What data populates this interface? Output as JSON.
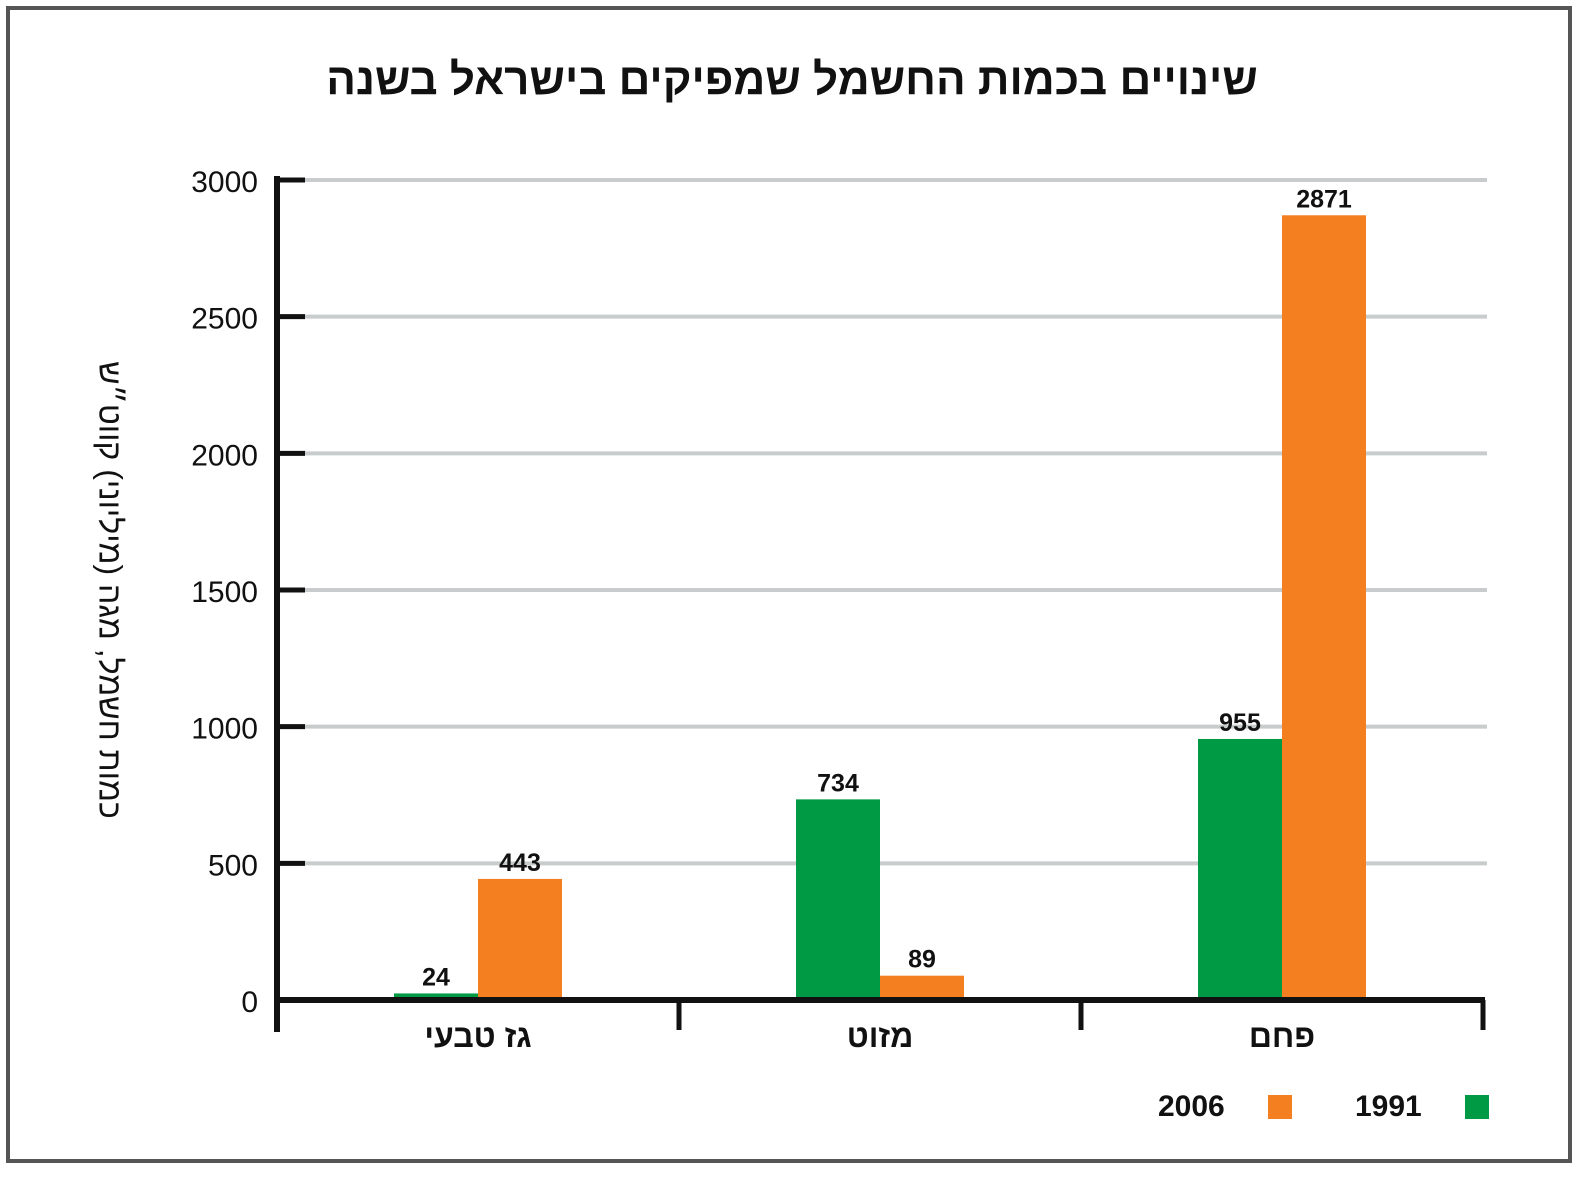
{
  "chart_data": {
    "type": "bar",
    "title": "שינויים בכמות החשמל שמפיקים בישראל בשנה",
    "ylabel": "כמות חשמל, מגה (מיליוני) קווט״ש",
    "xlabel": "",
    "categories": [
      "גז טבעי",
      "מזוט",
      "פחם"
    ],
    "series": [
      {
        "name": "1991",
        "values": [
          24,
          734,
          955
        ],
        "color": "#009a44"
      },
      {
        "name": "2006",
        "values": [
          443,
          89,
          2871
        ],
        "color": "#f47f20"
      }
    ],
    "ylim": [
      0,
      3000
    ],
    "yticks": [
      0,
      500,
      1000,
      1500,
      2000,
      2500,
      3000
    ],
    "grid": true,
    "gridColor": "#c8cccc",
    "legend": "bottom-right"
  }
}
